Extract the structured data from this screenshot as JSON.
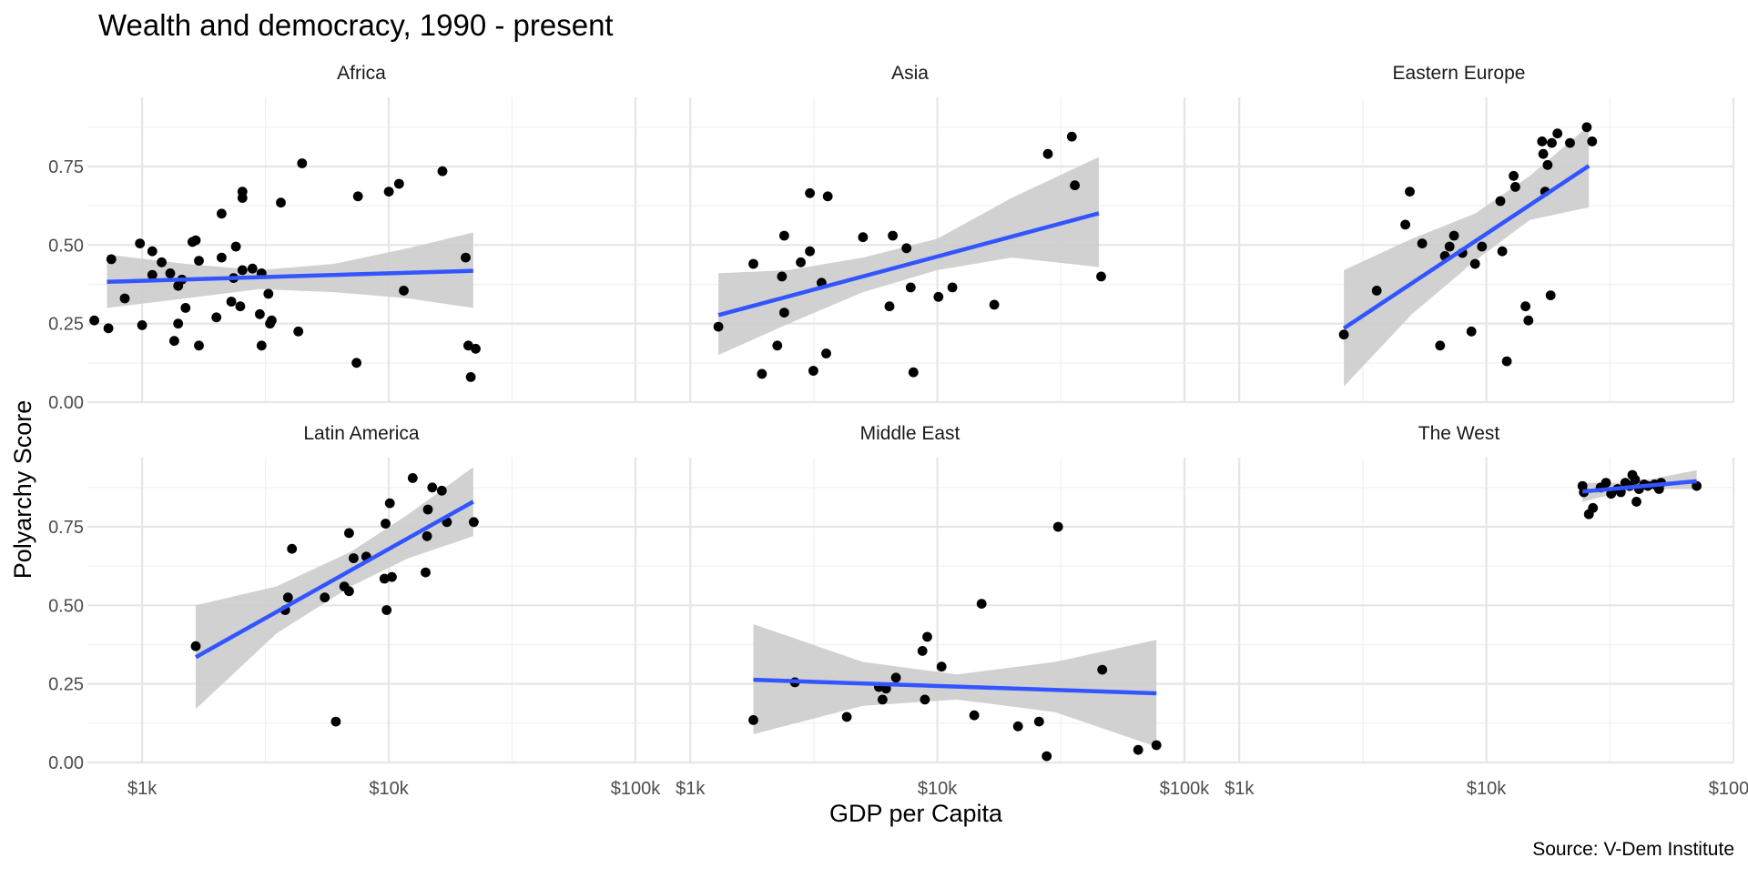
{
  "chart_data": {
    "type": "scatter",
    "title": "Wealth and democracy, 1990 - present",
    "xlabel": "GDP per Capita",
    "ylabel": "Polyarchy Score",
    "caption": "Source: V-Dem Institute",
    "x_scale": "log10",
    "xlim": [
      600,
      100000
    ],
    "ylim": [
      0,
      0.97
    ],
    "x_ticks": [
      1000,
      10000,
      100000
    ],
    "x_tick_labels": [
      "$1k",
      "$10k",
      "$100k"
    ],
    "y_ticks": [
      0,
      0.25,
      0.5,
      0.75
    ],
    "y_tick_labels": [
      "0.00",
      "0.25",
      "0.50",
      "0.75"
    ],
    "grid": true,
    "smooth": {
      "method": "linear",
      "color": "#3355ff",
      "ribbon_color": "#cccccc"
    },
    "panels": [
      {
        "name": "Africa",
        "points": [
          [
            640,
            0.26
          ],
          [
            730,
            0.235
          ],
          [
            750,
            0.455
          ],
          [
            850,
            0.33
          ],
          [
            980,
            0.505
          ],
          [
            1000,
            0.245
          ],
          [
            1100,
            0.48
          ],
          [
            1100,
            0.405
          ],
          [
            1200,
            0.445
          ],
          [
            1300,
            0.41
          ],
          [
            1350,
            0.195
          ],
          [
            1400,
            0.37
          ],
          [
            1400,
            0.25
          ],
          [
            1450,
            0.39
          ],
          [
            1500,
            0.3
          ],
          [
            1600,
            0.51
          ],
          [
            1650,
            0.515
          ],
          [
            1700,
            0.45
          ],
          [
            1700,
            0.18
          ],
          [
            2000,
            0.27
          ],
          [
            2100,
            0.6
          ],
          [
            2100,
            0.46
          ],
          [
            2300,
            0.32
          ],
          [
            2350,
            0.395
          ],
          [
            2400,
            0.495
          ],
          [
            2500,
            0.305
          ],
          [
            2550,
            0.42
          ],
          [
            2550,
            0.65
          ],
          [
            2550,
            0.67
          ],
          [
            2800,
            0.425
          ],
          [
            3000,
            0.28
          ],
          [
            3050,
            0.18
          ],
          [
            3050,
            0.41
          ],
          [
            3250,
            0.345
          ],
          [
            3350,
            0.26
          ],
          [
            3300,
            0.25
          ],
          [
            3650,
            0.635
          ],
          [
            4300,
            0.225
          ],
          [
            4450,
            0.76
          ],
          [
            7400,
            0.125
          ],
          [
            7500,
            0.655
          ],
          [
            10000,
            0.67
          ],
          [
            11000,
            0.695
          ],
          [
            11500,
            0.355
          ],
          [
            16500,
            0.735
          ],
          [
            20500,
            0.46
          ],
          [
            21000,
            0.18
          ],
          [
            21500,
            0.08
          ],
          [
            22500,
            0.17
          ]
        ],
        "fit": {
          "x0": 720,
          "y0": 0.383,
          "x1": 22000,
          "y1": 0.418
        },
        "band": [
          [
            720,
            0.3,
            0.47
          ],
          [
            1500,
            0.33,
            0.44
          ],
          [
            3000,
            0.36,
            0.42
          ],
          [
            6000,
            0.35,
            0.44
          ],
          [
            12000,
            0.33,
            0.49
          ],
          [
            22000,
            0.3,
            0.54
          ]
        ]
      },
      {
        "name": "Asia",
        "points": [
          [
            1300,
            0.24
          ],
          [
            1800,
            0.44
          ],
          [
            1950,
            0.09
          ],
          [
            2250,
            0.18
          ],
          [
            2400,
            0.53
          ],
          [
            2400,
            0.285
          ],
          [
            2350,
            0.4
          ],
          [
            2800,
            0.445
          ],
          [
            3050,
            0.48
          ],
          [
            3050,
            0.665
          ],
          [
            3150,
            0.1
          ],
          [
            3400,
            0.38
          ],
          [
            3550,
            0.155
          ],
          [
            3600,
            0.655
          ],
          [
            5000,
            0.525
          ],
          [
            6400,
            0.305
          ],
          [
            6600,
            0.53
          ],
          [
            7500,
            0.49
          ],
          [
            7800,
            0.365
          ],
          [
            8000,
            0.095
          ],
          [
            10100,
            0.335
          ],
          [
            11500,
            0.365
          ],
          [
            17000,
            0.31
          ],
          [
            28000,
            0.79
          ],
          [
            35000,
            0.845
          ],
          [
            36000,
            0.69
          ],
          [
            46000,
            0.4
          ]
        ],
        "fit": {
          "x0": 1300,
          "y0": 0.277,
          "x1": 45000,
          "y1": 0.601
        },
        "band": [
          [
            1300,
            0.15,
            0.41
          ],
          [
            2500,
            0.25,
            0.42
          ],
          [
            5000,
            0.35,
            0.46
          ],
          [
            10000,
            0.42,
            0.52
          ],
          [
            20000,
            0.46,
            0.65
          ],
          [
            45000,
            0.43,
            0.78
          ]
        ]
      },
      {
        "name": "Eastern Europe",
        "points": [
          [
            2650,
            0.215
          ],
          [
            3600,
            0.355
          ],
          [
            4700,
            0.565
          ],
          [
            4900,
            0.67
          ],
          [
            5500,
            0.505
          ],
          [
            6500,
            0.18
          ],
          [
            6800,
            0.465
          ],
          [
            7100,
            0.495
          ],
          [
            7400,
            0.53
          ],
          [
            8000,
            0.475
          ],
          [
            8700,
            0.225
          ],
          [
            9000,
            0.44
          ],
          [
            9600,
            0.495
          ],
          [
            11400,
            0.64
          ],
          [
            11600,
            0.48
          ],
          [
            12100,
            0.13
          ],
          [
            12900,
            0.72
          ],
          [
            13100,
            0.685
          ],
          [
            14400,
            0.305
          ],
          [
            14800,
            0.26
          ],
          [
            16800,
            0.83
          ],
          [
            17000,
            0.79
          ],
          [
            17300,
            0.67
          ],
          [
            17700,
            0.755
          ],
          [
            18200,
            0.34
          ],
          [
            18400,
            0.825
          ],
          [
            19400,
            0.855
          ],
          [
            21800,
            0.825
          ],
          [
            25500,
            0.875
          ],
          [
            26800,
            0.83
          ]
        ],
        "fit": {
          "x0": 2650,
          "y0": 0.235,
          "x1": 26000,
          "y1": 0.752
        },
        "band": [
          [
            2650,
            0.05,
            0.42
          ],
          [
            5000,
            0.28,
            0.52
          ],
          [
            9000,
            0.45,
            0.6
          ],
          [
            15000,
            0.58,
            0.72
          ],
          [
            26000,
            0.62,
            0.88
          ]
        ]
      },
      {
        "name": "Latin America",
        "points": [
          [
            1650,
            0.37
          ],
          [
            3800,
            0.485
          ],
          [
            3900,
            0.525
          ],
          [
            4050,
            0.68
          ],
          [
            5500,
            0.525
          ],
          [
            6100,
            0.13
          ],
          [
            6600,
            0.56
          ],
          [
            6900,
            0.545
          ],
          [
            6900,
            0.73
          ],
          [
            7200,
            0.65
          ],
          [
            8100,
            0.655
          ],
          [
            9600,
            0.585
          ],
          [
            9700,
            0.76
          ],
          [
            9800,
            0.485
          ],
          [
            10100,
            0.825
          ],
          [
            10300,
            0.59
          ],
          [
            12500,
            0.905
          ],
          [
            14100,
            0.605
          ],
          [
            14300,
            0.72
          ],
          [
            14400,
            0.805
          ],
          [
            15000,
            0.875
          ],
          [
            16400,
            0.865
          ],
          [
            17200,
            0.765
          ],
          [
            22100,
            0.765
          ]
        ],
        "fit": {
          "x0": 1650,
          "y0": 0.335,
          "x1": 22000,
          "y1": 0.83
        },
        "band": [
          [
            1650,
            0.17,
            0.5
          ],
          [
            3500,
            0.41,
            0.56
          ],
          [
            7000,
            0.56,
            0.67
          ],
          [
            12000,
            0.65,
            0.79
          ],
          [
            22000,
            0.72,
            0.94
          ]
        ]
      },
      {
        "name": "Middle East",
        "points": [
          [
            1800,
            0.135
          ],
          [
            2650,
            0.255
          ],
          [
            4300,
            0.145
          ],
          [
            5800,
            0.24
          ],
          [
            6000,
            0.2
          ],
          [
            6200,
            0.235
          ],
          [
            6800,
            0.27
          ],
          [
            8700,
            0.355
          ],
          [
            8900,
            0.2
          ],
          [
            9100,
            0.4
          ],
          [
            10400,
            0.305
          ],
          [
            14100,
            0.15
          ],
          [
            15100,
            0.505
          ],
          [
            21200,
            0.115
          ],
          [
            25800,
            0.13
          ],
          [
            27700,
            0.02
          ],
          [
            30800,
            0.75
          ],
          [
            46500,
            0.295
          ],
          [
            65000,
            0.04
          ],
          [
            77000,
            0.055
          ]
        ],
        "fit": {
          "x0": 1800,
          "y0": 0.263,
          "x1": 77000,
          "y1": 0.22
        },
        "band": [
          [
            1800,
            0.09,
            0.44
          ],
          [
            5000,
            0.18,
            0.32
          ],
          [
            12000,
            0.2,
            0.28
          ],
          [
            30000,
            0.16,
            0.32
          ],
          [
            77000,
            0.05,
            0.39
          ]
        ]
      },
      {
        "name": "The West",
        "points": [
          [
            24500,
            0.88
          ],
          [
            24800,
            0.86
          ],
          [
            26000,
            0.79
          ],
          [
            27000,
            0.81
          ],
          [
            29000,
            0.875
          ],
          [
            30500,
            0.89
          ],
          [
            32000,
            0.855
          ],
          [
            34000,
            0.87
          ],
          [
            35000,
            0.86
          ],
          [
            36500,
            0.89
          ],
          [
            38000,
            0.88
          ],
          [
            39000,
            0.915
          ],
          [
            40000,
            0.9
          ],
          [
            40500,
            0.83
          ],
          [
            41500,
            0.87
          ],
          [
            43500,
            0.885
          ],
          [
            45000,
            0.88
          ],
          [
            48000,
            0.885
          ],
          [
            50000,
            0.87
          ],
          [
            51000,
            0.89
          ],
          [
            71000,
            0.88
          ]
        ],
        "fit": {
          "x0": 24500,
          "y0": 0.862,
          "x1": 71000,
          "y1": 0.895
        },
        "band": [
          [
            24500,
            0.83,
            0.89
          ],
          [
            35000,
            0.86,
            0.89
          ],
          [
            45000,
            0.87,
            0.9
          ],
          [
            71000,
            0.87,
            0.93
          ]
        ]
      }
    ]
  }
}
